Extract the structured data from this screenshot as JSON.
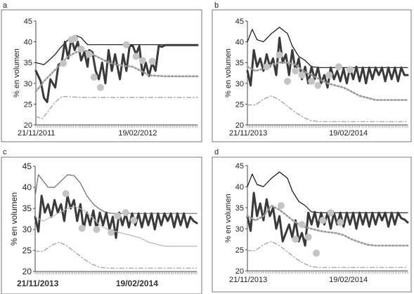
{
  "chart_data": [
    {
      "panel": "a",
      "type": "line",
      "ylabel": "% en volumen",
      "ylim": [
        20,
        45
      ],
      "yticks": [
        20,
        25,
        30,
        35,
        40,
        45
      ],
      "xlim": [
        0,
        100
      ],
      "xticklabels": [
        {
          "x": 0,
          "label": "21/11/2011"
        },
        {
          "x": 63,
          "label": "19/02/2012"
        }
      ],
      "series": [
        {
          "style": "thin-black",
          "x": [
            0,
            5,
            8,
            12,
            15,
            20,
            25,
            28,
            32,
            40,
            50,
            60,
            70,
            80,
            88,
            100
          ],
          "y": [
            35,
            34.5,
            35.5,
            37,
            38.5,
            40.5,
            41.5,
            41,
            39.3,
            39.3,
            39.3,
            39.3,
            39.3,
            39.3,
            39.3,
            39.2
          ]
        },
        {
          "style": "thick-dark",
          "x": [
            0,
            3,
            5,
            7,
            9,
            12,
            14,
            16,
            18,
            20,
            22,
            24,
            26,
            28,
            30,
            32,
            33,
            35,
            37,
            39,
            41,
            43,
            45,
            47,
            49,
            52,
            54,
            56,
            58,
            60,
            62,
            64,
            66,
            68,
            70,
            72,
            74,
            76,
            78,
            80,
            85,
            90,
            95,
            100
          ],
          "y": [
            33,
            30.5,
            26.5,
            25.5,
            31,
            29,
            34.5,
            35,
            40,
            36,
            40.8,
            38,
            40,
            35.5,
            37.5,
            34,
            38,
            37.5,
            33,
            31,
            35,
            30,
            38,
            33,
            37,
            31,
            37,
            33,
            39,
            39,
            37,
            39,
            32,
            35,
            31.8,
            35,
            33,
            39,
            38.8,
            39.2,
            39.2,
            39.2,
            39.2,
            39.2
          ]
        },
        {
          "style": "dotted-gray",
          "x": [
            0,
            5,
            10,
            15,
            20,
            25,
            30,
            35,
            40,
            45,
            50,
            55,
            60,
            65,
            70,
            75,
            80,
            90,
            100
          ],
          "y": [
            28,
            30.5,
            32.5,
            34.5,
            36.5,
            37.5,
            38,
            37,
            36,
            35,
            34.5,
            34.2,
            34,
            33,
            32,
            31.8,
            31.7,
            31.7,
            31.7
          ]
        },
        {
          "style": "dashdot-gray",
          "x": [
            0,
            4,
            8,
            12,
            16,
            20,
            24,
            30,
            40,
            50,
            60,
            70,
            80,
            90,
            100
          ],
          "y": [
            22,
            21.5,
            23.5,
            25.5,
            26.8,
            26.8,
            26.7,
            26.6,
            26.6,
            26.6,
            26.6,
            26.6,
            26.6,
            26.6,
            26.6
          ]
        }
      ],
      "points": [
        {
          "x": 17,
          "y": 34.8
        },
        {
          "x": 22,
          "y": 40.5
        },
        {
          "x": 24,
          "y": 40.8
        },
        {
          "x": 28,
          "y": 38.3
        },
        {
          "x": 33,
          "y": 37
        },
        {
          "x": 36,
          "y": 31.5
        },
        {
          "x": 40,
          "y": 29
        },
        {
          "x": 56,
          "y": 39.3
        },
        {
          "x": 62,
          "y": 36.5
        },
        {
          "x": 66,
          "y": 35.5
        },
        {
          "x": 72,
          "y": 35.3
        }
      ]
    },
    {
      "panel": "b",
      "type": "line",
      "ylabel": "% en volumen",
      "ylim": [
        20,
        45
      ],
      "yticks": [
        20,
        25,
        30,
        35,
        40,
        45
      ],
      "xlim": [
        0,
        100
      ],
      "xticklabels": [
        {
          "x": 0,
          "label": "21/11/2013"
        },
        {
          "x": 63,
          "label": "19/02/2014"
        }
      ],
      "series": [
        {
          "style": "thin-black",
          "x": [
            0,
            3,
            6,
            10,
            15,
            20,
            25,
            28,
            32,
            36,
            40,
            45,
            50,
            60,
            70,
            80,
            90,
            100
          ],
          "y": [
            40,
            43,
            40.5,
            40,
            42,
            43.5,
            42,
            39,
            36.5,
            35.5,
            34,
            33.8,
            33.8,
            33.8,
            33.8,
            33.8,
            33.8,
            33.8
          ]
        },
        {
          "style": "thick-dark",
          "x": [
            0,
            2,
            4,
            6,
            8,
            10,
            12,
            14,
            16,
            18,
            20,
            22,
            24,
            26,
            28,
            30,
            32,
            34,
            36,
            38,
            40,
            42,
            44,
            46,
            48,
            50,
            52,
            54,
            56,
            58,
            60,
            62,
            64,
            66,
            68,
            70,
            72,
            74,
            76,
            78,
            80,
            82,
            84,
            86,
            88,
            90,
            92,
            94,
            96,
            98,
            100
          ],
          "y": [
            33,
            29.5,
            38,
            34,
            36,
            33,
            37,
            34,
            36,
            32,
            41,
            35,
            37,
            32,
            38,
            33,
            36,
            31,
            34,
            30,
            34,
            31,
            33.8,
            30,
            32,
            29,
            33.8,
            31,
            33,
            30.5,
            33.5,
            30,
            33.8,
            31,
            34,
            30.5,
            33.8,
            30,
            33.8,
            31,
            33.8,
            32,
            33.8,
            30.5,
            33.8,
            31,
            33.8,
            30.5,
            33.8,
            32,
            32
          ]
        },
        {
          "style": "dotted-gray",
          "x": [
            0,
            5,
            10,
            15,
            20,
            25,
            30,
            35,
            40,
            45,
            50,
            55,
            60,
            65,
            70,
            75,
            80,
            90,
            100
          ],
          "y": [
            34,
            33,
            33.5,
            34.5,
            35,
            35,
            34.5,
            33,
            32,
            31,
            30,
            29.5,
            29,
            28,
            27,
            26.5,
            26,
            26,
            26
          ]
        },
        {
          "style": "dashdot-gray",
          "x": [
            0,
            5,
            10,
            15,
            20,
            25,
            30,
            35,
            40,
            45,
            50,
            60,
            70,
            80,
            90,
            100
          ],
          "y": [
            24.8,
            24.8,
            26.2,
            27,
            26,
            24.5,
            23,
            21.8,
            21,
            20.8,
            20.8,
            20.8,
            20.8,
            20.8,
            20.8,
            20.8
          ]
        }
      ],
      "points": [
        {
          "x": 12,
          "y": 34
        },
        {
          "x": 20,
          "y": 36.8
        },
        {
          "x": 25,
          "y": 30.5
        },
        {
          "x": 30,
          "y": 33
        },
        {
          "x": 34,
          "y": 32
        },
        {
          "x": 40,
          "y": 30.5
        },
        {
          "x": 44,
          "y": 29.5
        },
        {
          "x": 51,
          "y": 32
        },
        {
          "x": 57,
          "y": 34
        },
        {
          "x": 64,
          "y": 33.3
        }
      ]
    },
    {
      "panel": "c",
      "type": "line",
      "ylabel": "% en volumen",
      "ylim": [
        20,
        45
      ],
      "yticks": [
        20,
        25,
        30,
        35,
        40,
        45
      ],
      "xlim": [
        0,
        100
      ],
      "xticklabels": [
        {
          "x": 0,
          "label": "21/11/2013"
        },
        {
          "x": 63,
          "label": "19/02/2014"
        }
      ],
      "series": [
        {
          "style": "thin-gray",
          "x": [
            0,
            2,
            5,
            8,
            12,
            16,
            20,
            24,
            28,
            32,
            36,
            40,
            44,
            48,
            52,
            56,
            60,
            70,
            80,
            90,
            100
          ],
          "y": [
            38,
            43,
            41.5,
            40,
            40,
            41.5,
            43,
            42.8,
            41,
            38,
            36,
            34.8,
            34,
            33.8,
            33.8,
            33.8,
            33.8,
            33.8,
            33.8,
            33.8,
            33.8
          ]
        },
        {
          "style": "thick-dark",
          "x": [
            0,
            2,
            4,
            6,
            8,
            10,
            12,
            14,
            16,
            18,
            20,
            22,
            24,
            26,
            28,
            30,
            32,
            34,
            36,
            38,
            40,
            42,
            44,
            46,
            48,
            50,
            52,
            54,
            56,
            58,
            60,
            62,
            64,
            66,
            68,
            70,
            72,
            74,
            76,
            78,
            80,
            82,
            84,
            86,
            88,
            90,
            92,
            94,
            96,
            98,
            100
          ],
          "y": [
            33,
            29.5,
            38,
            34,
            36,
            33,
            37,
            34,
            36,
            32,
            38,
            35,
            37,
            32,
            36,
            30,
            34,
            31,
            34.5,
            30,
            34,
            31,
            34,
            30,
            33,
            28,
            34,
            31,
            33.8,
            30.5,
            33.8,
            31,
            33.8,
            30.5,
            33.8,
            31,
            33.8,
            30,
            33.8,
            31,
            33.8,
            32,
            33.8,
            30.5,
            33.8,
            31,
            33.8,
            30.5,
            33,
            32,
            31.5
          ]
        },
        {
          "style": "thin-lightgray",
          "x": [
            0,
            5,
            10,
            15,
            20,
            25,
            30,
            35,
            40,
            45,
            50,
            55,
            60,
            65,
            70,
            75,
            80,
            90,
            100
          ],
          "y": [
            33,
            32,
            33,
            34,
            35,
            35.5,
            34.5,
            33,
            31,
            30,
            29.5,
            29,
            28.5,
            28,
            27,
            26.5,
            26,
            26,
            26
          ]
        },
        {
          "style": "dashdot-gray",
          "x": [
            0,
            5,
            10,
            15,
            20,
            25,
            30,
            35,
            40,
            45,
            50,
            60,
            70,
            80,
            90,
            100
          ],
          "y": [
            24.8,
            24.8,
            26.2,
            27,
            26,
            24.5,
            23,
            21.8,
            21,
            20.8,
            20.8,
            20.8,
            20.8,
            20.8,
            20.8,
            20.8
          ]
        }
      ],
      "points": [
        {
          "x": 19,
          "y": 38.5
        },
        {
          "x": 29,
          "y": 30.3
        },
        {
          "x": 38,
          "y": 30
        },
        {
          "x": 47,
          "y": 29.3
        },
        {
          "x": 51,
          "y": 33.2
        },
        {
          "x": 56,
          "y": 34
        },
        {
          "x": 61,
          "y": 32.2
        }
      ]
    },
    {
      "panel": "d",
      "type": "line",
      "ylabel": "% en volumen",
      "ylim": [
        20,
        45
      ],
      "yticks": [
        20,
        25,
        30,
        35,
        40,
        45
      ],
      "xlim": [
        0,
        100
      ],
      "xticklabels": [
        {
          "x": 0,
          "label": "21/11/2013"
        },
        {
          "x": 63,
          "label": "19/02/2014"
        }
      ],
      "series": [
        {
          "style": "thin-black",
          "x": [
            0,
            3,
            6,
            10,
            15,
            20,
            25,
            28,
            32,
            36,
            40,
            45,
            50,
            60,
            70,
            80,
            90,
            100
          ],
          "y": [
            40,
            43,
            40.5,
            40,
            42,
            43.5,
            42,
            39,
            36.5,
            35.5,
            34,
            33.8,
            33.8,
            33.8,
            33.8,
            33.8,
            33.8,
            33.8
          ]
        },
        {
          "style": "thick-dark",
          "x": [
            0,
            2,
            4,
            6,
            8,
            10,
            12,
            14,
            16,
            18,
            20,
            22,
            24,
            26,
            28,
            30,
            32,
            34,
            36,
            38,
            40,
            42,
            44,
            46,
            48,
            50,
            52,
            54,
            56,
            58,
            60,
            62,
            64,
            66,
            68,
            70,
            72,
            74,
            76,
            78,
            80,
            82,
            84,
            86,
            88,
            90,
            92,
            94,
            96,
            98,
            100
          ],
          "y": [
            33,
            29.5,
            38.5,
            33,
            36,
            32,
            37,
            33,
            35,
            30,
            33,
            27,
            29,
            31,
            28,
            32,
            27,
            29,
            26,
            33.8,
            31,
            34,
            30.5,
            33.8,
            31,
            33.8,
            30,
            33.8,
            31,
            33.8,
            30.5,
            33.8,
            31,
            33.8,
            30,
            33.8,
            31,
            33.8,
            30.5,
            33.8,
            31,
            33.8,
            32,
            33.8,
            30.5,
            33.8,
            31,
            33.8,
            32.5,
            32.2,
            31.5
          ]
        },
        {
          "style": "dotted-gray",
          "x": [
            0,
            5,
            10,
            15,
            20,
            25,
            30,
            35,
            40,
            45,
            50,
            55,
            60,
            65,
            70,
            75,
            80,
            90,
            100
          ],
          "y": [
            33,
            32,
            33,
            35.5,
            34.5,
            33,
            31.5,
            30.5,
            30,
            29.5,
            29.2,
            29,
            28.5,
            27.5,
            26.8,
            26.2,
            26,
            26,
            26
          ]
        },
        {
          "style": "dashdot-gray",
          "x": [
            0,
            5,
            10,
            15,
            20,
            25,
            30,
            35,
            40,
            45,
            50,
            60,
            70,
            80,
            90,
            100
          ],
          "y": [
            24.8,
            24.8,
            26.2,
            27,
            26,
            24.5,
            23,
            21.8,
            21,
            20.8,
            20.8,
            20.8,
            20.8,
            20.8,
            20.8,
            20.8
          ]
        }
      ],
      "points": [
        {
          "x": 21,
          "y": 35.5
        },
        {
          "x": 30,
          "y": 27.5
        },
        {
          "x": 34,
          "y": 31
        },
        {
          "x": 38,
          "y": 28
        },
        {
          "x": 43,
          "y": 24.2
        },
        {
          "x": 47,
          "y": 32
        },
        {
          "x": 52,
          "y": 33.8
        },
        {
          "x": 58,
          "y": 31.5
        }
      ]
    }
  ]
}
